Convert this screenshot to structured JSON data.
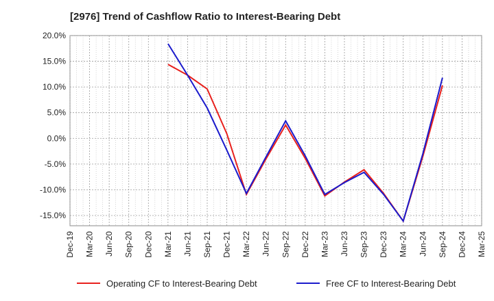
{
  "title": "[2976]  Trend of Cashflow Ratio to Interest-Bearing Debt",
  "chart_data": {
    "type": "line",
    "title": "[2976]  Trend of Cashflow Ratio to Interest-Bearing Debt",
    "xlabel": "",
    "ylabel": "",
    "categories": [
      "Dec-19",
      "Mar-20",
      "Jun-20",
      "Sep-20",
      "Dec-20",
      "Mar-21",
      "Jun-21",
      "Sep-21",
      "Dec-21",
      "Mar-22",
      "Jun-22",
      "Sep-22",
      "Dec-22",
      "Mar-23",
      "Jun-23",
      "Sep-23",
      "Dec-23",
      "Mar-24",
      "Jun-24",
      "Sep-24",
      "Dec-24",
      "Mar-25"
    ],
    "yticks": [
      "20.0%",
      "15.0%",
      "10.0%",
      "5.0%",
      "0.0%",
      "-5.0%",
      "-10.0%",
      "-15.0%"
    ],
    "ylim": [
      -17,
      20
    ],
    "grid": true,
    "legend_position": "bottom",
    "series": [
      {
        "name": "Operating CF to Interest-Bearing Debt",
        "color": "#e8201c",
        "values": [
          null,
          null,
          null,
          null,
          null,
          14.4,
          12.3,
          9.6,
          0.9,
          -10.9,
          -4.0,
          2.6,
          -3.9,
          -11.2,
          -8.5,
          -6.1,
          -10.7,
          -16.1,
          -3.5,
          10.3,
          null,
          null
        ]
      },
      {
        "name": "Free CF to Interest-Bearing Debt",
        "color": "#1a1acc",
        "values": [
          null,
          null,
          null,
          null,
          null,
          18.4,
          12.3,
          5.9,
          -2.3,
          -10.7,
          -3.6,
          3.4,
          -3.4,
          -10.9,
          -8.6,
          -6.6,
          -10.9,
          -16.1,
          -3.0,
          11.8,
          null,
          null
        ]
      }
    ]
  }
}
